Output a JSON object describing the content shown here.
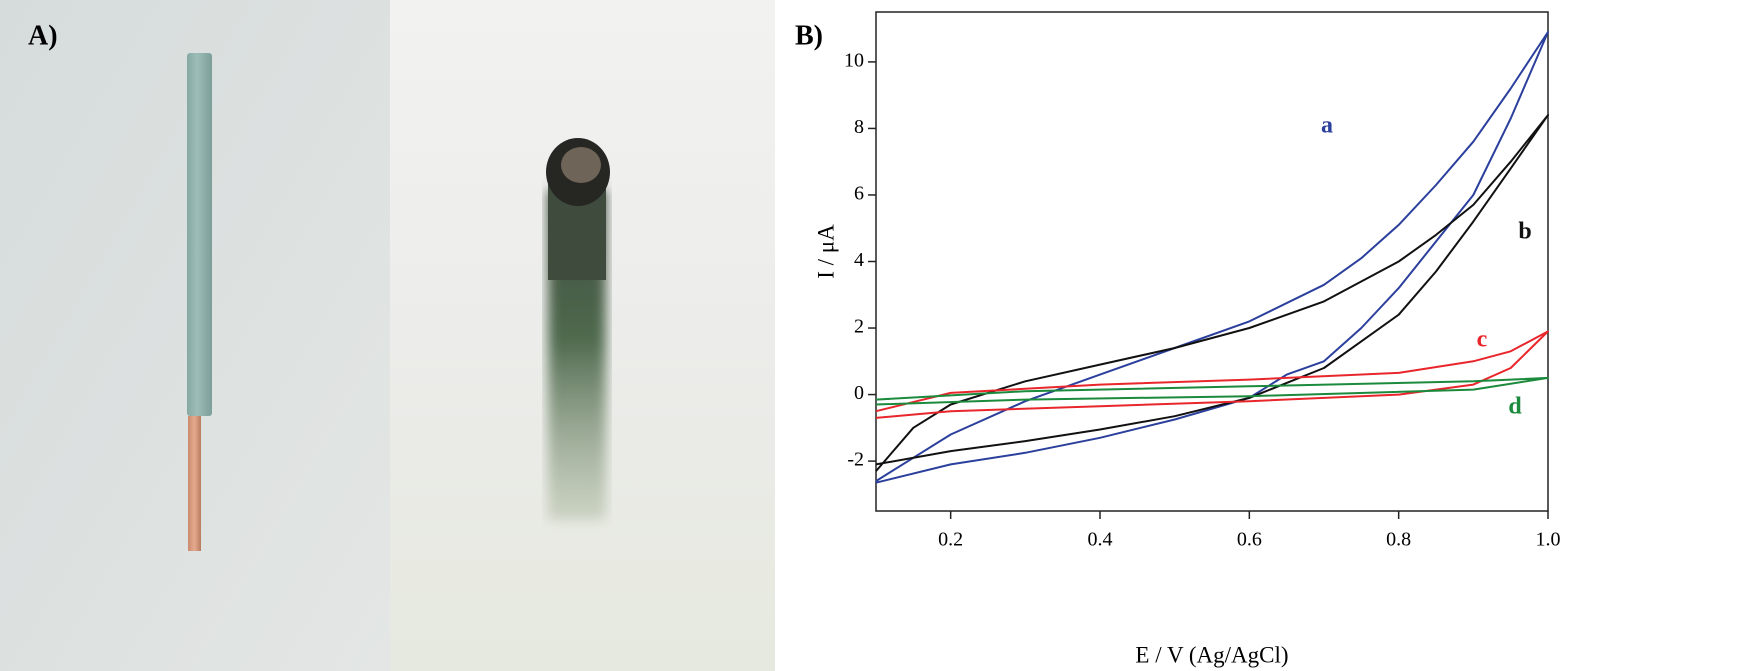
{
  "photo_panel": {
    "label": "A)"
  },
  "chart_data": {
    "type": "line",
    "panel_label": "B)",
    "x_label": "E / V (Ag/AgCl)",
    "y_label": "I / μA",
    "xlim": [
      0.1,
      1.0
    ],
    "xticks": [
      0.2,
      0.4,
      0.6,
      0.8,
      {
        "value": 1,
        "label": "1.0"
      }
    ],
    "ylim": [
      -3.5,
      11.5
    ],
    "yticks": [
      -2,
      0,
      2,
      4,
      6,
      8,
      10
    ],
    "grid": false,
    "series": [
      {
        "name": "a",
        "color": "#2b3f9c",
        "x": [
          0.1,
          0.2,
          0.3,
          0.4,
          0.5,
          0.6,
          0.65,
          0.7,
          0.75,
          0.8,
          0.85,
          0.9,
          0.95,
          1.0,
          0.95,
          0.9,
          0.85,
          0.8,
          0.75,
          0.7,
          0.6,
          0.5,
          0.4,
          0.3,
          0.2,
          0.15,
          0.1
        ],
        "values": [
          -2.65,
          -2.1,
          -1.75,
          -1.3,
          -0.75,
          -0.1,
          0.6,
          1.0,
          2.0,
          3.2,
          4.6,
          6.0,
          8.3,
          10.9,
          9.2,
          7.6,
          6.3,
          5.1,
          4.1,
          3.3,
          2.2,
          1.4,
          0.6,
          -0.2,
          -1.2,
          -1.9,
          -2.6
        ]
      },
      {
        "name": "b",
        "color": "#111111",
        "x": [
          0.1,
          0.2,
          0.3,
          0.4,
          0.5,
          0.6,
          0.7,
          0.8,
          0.85,
          0.9,
          0.95,
          1.0,
          0.95,
          0.9,
          0.85,
          0.8,
          0.7,
          0.6,
          0.5,
          0.4,
          0.3,
          0.2,
          0.15,
          0.1
        ],
        "values": [
          -2.1,
          -1.7,
          -1.4,
          -1.05,
          -0.65,
          -0.1,
          0.8,
          2.4,
          3.7,
          5.2,
          6.8,
          8.4,
          7.0,
          5.7,
          4.8,
          4.0,
          2.8,
          2.0,
          1.4,
          0.9,
          0.4,
          -0.3,
          -1.0,
          -2.3
        ]
      },
      {
        "name": "c",
        "color": "#e8262b",
        "x": [
          0.1,
          0.2,
          0.4,
          0.6,
          0.8,
          0.9,
          0.95,
          1.0,
          0.95,
          0.9,
          0.8,
          0.6,
          0.4,
          0.2,
          0.1
        ],
        "values": [
          -0.7,
          -0.5,
          -0.35,
          -0.2,
          0.0,
          0.3,
          0.8,
          1.9,
          1.3,
          1.0,
          0.65,
          0.45,
          0.3,
          0.05,
          -0.5
        ]
      },
      {
        "name": "d",
        "color": "#1b8a3c",
        "x": [
          0.1,
          0.3,
          0.6,
          0.9,
          1.0,
          0.9,
          0.6,
          0.3,
          0.1
        ],
        "values": [
          -0.3,
          -0.15,
          -0.05,
          0.15,
          0.5,
          0.4,
          0.25,
          0.1,
          -0.15
        ]
      }
    ]
  }
}
